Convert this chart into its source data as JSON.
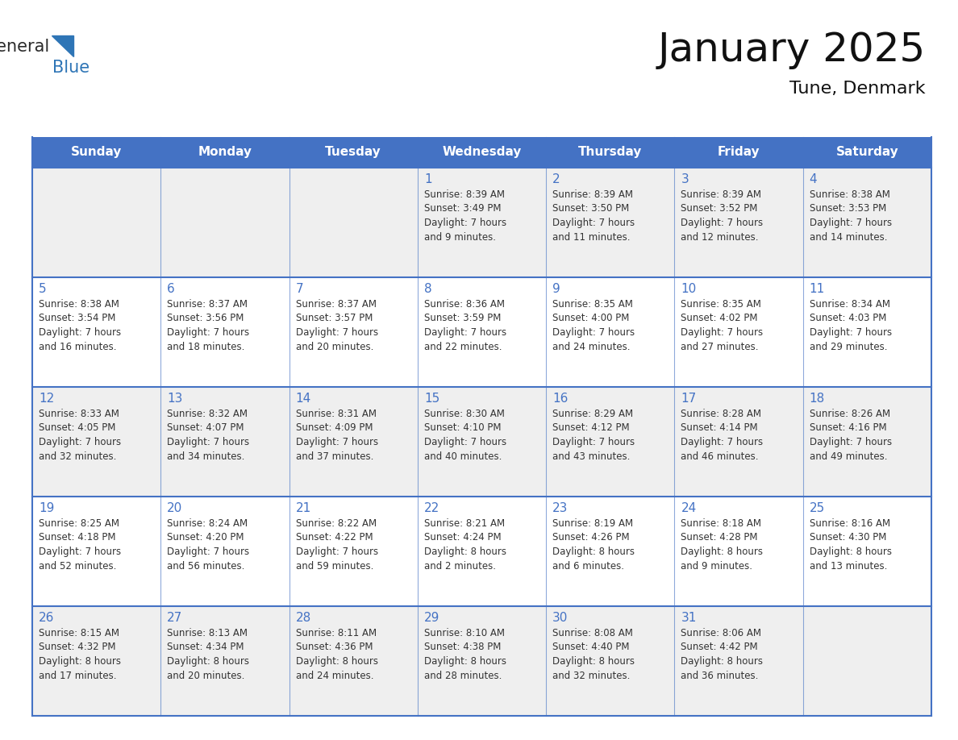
{
  "title": "January 2025",
  "subtitle": "Tune, Denmark",
  "days_of_week": [
    "Sunday",
    "Monday",
    "Tuesday",
    "Wednesday",
    "Thursday",
    "Friday",
    "Saturday"
  ],
  "header_bg": "#4472C4",
  "header_text": "#FFFFFF",
  "row_bg_odd": "#EFEFEF",
  "row_bg_even": "#FFFFFF",
  "border_color": "#4472C4",
  "day_number_color": "#4472C4",
  "text_color": "#333333",
  "calendar_data": [
    [
      null,
      null,
      null,
      {
        "day": 1,
        "sunrise": "8:39 AM",
        "sunset": "3:49 PM",
        "daylight": "7 hours and 9 minutes."
      },
      {
        "day": 2,
        "sunrise": "8:39 AM",
        "sunset": "3:50 PM",
        "daylight": "7 hours and 11 minutes."
      },
      {
        "day": 3,
        "sunrise": "8:39 AM",
        "sunset": "3:52 PM",
        "daylight": "7 hours and 12 minutes."
      },
      {
        "day": 4,
        "sunrise": "8:38 AM",
        "sunset": "3:53 PM",
        "daylight": "7 hours and 14 minutes."
      }
    ],
    [
      {
        "day": 5,
        "sunrise": "8:38 AM",
        "sunset": "3:54 PM",
        "daylight": "7 hours and 16 minutes."
      },
      {
        "day": 6,
        "sunrise": "8:37 AM",
        "sunset": "3:56 PM",
        "daylight": "7 hours and 18 minutes."
      },
      {
        "day": 7,
        "sunrise": "8:37 AM",
        "sunset": "3:57 PM",
        "daylight": "7 hours and 20 minutes."
      },
      {
        "day": 8,
        "sunrise": "8:36 AM",
        "sunset": "3:59 PM",
        "daylight": "7 hours and 22 minutes."
      },
      {
        "day": 9,
        "sunrise": "8:35 AM",
        "sunset": "4:00 PM",
        "daylight": "7 hours and 24 minutes."
      },
      {
        "day": 10,
        "sunrise": "8:35 AM",
        "sunset": "4:02 PM",
        "daylight": "7 hours and 27 minutes."
      },
      {
        "day": 11,
        "sunrise": "8:34 AM",
        "sunset": "4:03 PM",
        "daylight": "7 hours and 29 minutes."
      }
    ],
    [
      {
        "day": 12,
        "sunrise": "8:33 AM",
        "sunset": "4:05 PM",
        "daylight": "7 hours and 32 minutes."
      },
      {
        "day": 13,
        "sunrise": "8:32 AM",
        "sunset": "4:07 PM",
        "daylight": "7 hours and 34 minutes."
      },
      {
        "day": 14,
        "sunrise": "8:31 AM",
        "sunset": "4:09 PM",
        "daylight": "7 hours and 37 minutes."
      },
      {
        "day": 15,
        "sunrise": "8:30 AM",
        "sunset": "4:10 PM",
        "daylight": "7 hours and 40 minutes."
      },
      {
        "day": 16,
        "sunrise": "8:29 AM",
        "sunset": "4:12 PM",
        "daylight": "7 hours and 43 minutes."
      },
      {
        "day": 17,
        "sunrise": "8:28 AM",
        "sunset": "4:14 PM",
        "daylight": "7 hours and 46 minutes."
      },
      {
        "day": 18,
        "sunrise": "8:26 AM",
        "sunset": "4:16 PM",
        "daylight": "7 hours and 49 minutes."
      }
    ],
    [
      {
        "day": 19,
        "sunrise": "8:25 AM",
        "sunset": "4:18 PM",
        "daylight": "7 hours and 52 minutes."
      },
      {
        "day": 20,
        "sunrise": "8:24 AM",
        "sunset": "4:20 PM",
        "daylight": "7 hours and 56 minutes."
      },
      {
        "day": 21,
        "sunrise": "8:22 AM",
        "sunset": "4:22 PM",
        "daylight": "7 hours and 59 minutes."
      },
      {
        "day": 22,
        "sunrise": "8:21 AM",
        "sunset": "4:24 PM",
        "daylight": "8 hours and 2 minutes."
      },
      {
        "day": 23,
        "sunrise": "8:19 AM",
        "sunset": "4:26 PM",
        "daylight": "8 hours and 6 minutes."
      },
      {
        "day": 24,
        "sunrise": "8:18 AM",
        "sunset": "4:28 PM",
        "daylight": "8 hours and 9 minutes."
      },
      {
        "day": 25,
        "sunrise": "8:16 AM",
        "sunset": "4:30 PM",
        "daylight": "8 hours and 13 minutes."
      }
    ],
    [
      {
        "day": 26,
        "sunrise": "8:15 AM",
        "sunset": "4:32 PM",
        "daylight": "8 hours and 17 minutes."
      },
      {
        "day": 27,
        "sunrise": "8:13 AM",
        "sunset": "4:34 PM",
        "daylight": "8 hours and 20 minutes."
      },
      {
        "day": 28,
        "sunrise": "8:11 AM",
        "sunset": "4:36 PM",
        "daylight": "8 hours and 24 minutes."
      },
      {
        "day": 29,
        "sunrise": "8:10 AM",
        "sunset": "4:38 PM",
        "daylight": "8 hours and 28 minutes."
      },
      {
        "day": 30,
        "sunrise": "8:08 AM",
        "sunset": "4:40 PM",
        "daylight": "8 hours and 32 minutes."
      },
      {
        "day": 31,
        "sunrise": "8:06 AM",
        "sunset": "4:42 PM",
        "daylight": "8 hours and 36 minutes."
      },
      null
    ]
  ],
  "logo_general_color": "#2b2b2b",
  "logo_blue_color": "#2E75B6",
  "figsize": [
    11.88,
    9.18
  ],
  "dpi": 100
}
